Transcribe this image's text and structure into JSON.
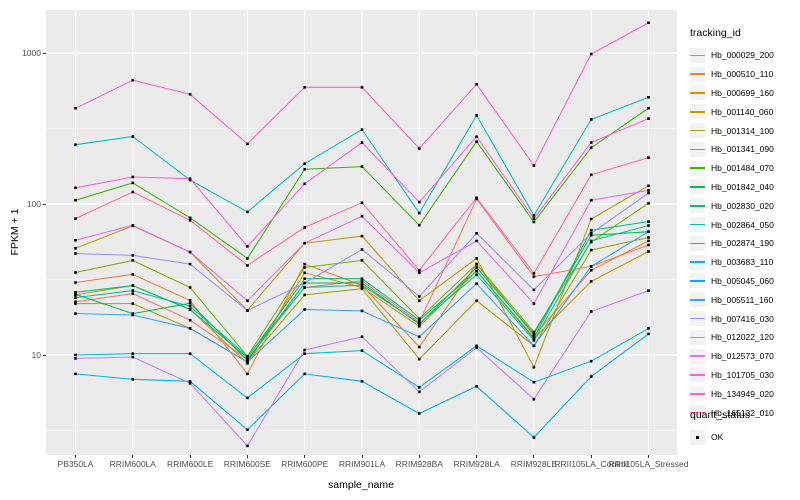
{
  "legend": {
    "tracking_title": "tracking_id",
    "quant_title": "quant_status",
    "quant_items": [
      {
        "label": "OK",
        "marker": "black-square"
      }
    ]
  },
  "colors": {
    "panel_background": "#EBEBEB",
    "gridline": "#FFFFFF",
    "tick_text": "#4D4D4D",
    "axis_title_text": "#000000",
    "point_marker": "#000000",
    "legend_key_background": "#F2F2F2"
  },
  "chart_data": {
    "type": "line",
    "title": "",
    "x_axis_label": "sample_name",
    "y_axis_label": "FPKM + 1",
    "y_scale": "log10",
    "y_ticks": [
      10,
      100,
      1000
    ],
    "y_minor_gridlines": [
      3.162,
      31.62,
      316.2
    ],
    "ylim": [
      2.2,
      1800
    ],
    "grid": true,
    "legend_position": "right",
    "marker": "filled-black-square",
    "categories": [
      "PB350LA",
      "RRIM600LA",
      "RRIM600LE",
      "RRIM600SE",
      "RRIM600PE",
      "RRIM901LA",
      "RRIM928BA",
      "RRIM928LA",
      "RRIM928LE",
      "RRII105LA_Control",
      "RRII105LA_Stressed"
    ],
    "series": [
      {
        "name": "Hb_000029_200",
        "color": "#F8766D",
        "values": [
          22.5,
          25.5,
          17,
          9.4,
          28,
          31,
          16.5,
          108,
          33,
          38.6,
          53.5
        ]
      },
      {
        "name": "Hb_000510_110",
        "color": "#EA8331",
        "values": [
          30.2,
          34.2,
          23,
          7.5,
          40,
          29,
          11.3,
          40,
          13.4,
          36.4,
          57
        ]
      },
      {
        "name": "Hb_000699_160",
        "color": "#D89000",
        "values": [
          25,
          28.8,
          20,
          8.8,
          35,
          28,
          15.5,
          36,
          12.8,
          30.7,
          48.5
        ]
      },
      {
        "name": "Hb_001140_060",
        "color": "#C09B00",
        "values": [
          50.9,
          71.6,
          48,
          19.7,
          55,
          61.3,
          22.9,
          43.6,
          8.3,
          79.5,
          132
        ]
      },
      {
        "name": "Hb_001314_100",
        "color": "#A3A500",
        "values": [
          21.9,
          21.9,
          15,
          9.0,
          25,
          27.5,
          9.4,
          22.9,
          11.5,
          49.5,
          60
        ]
      },
      {
        "name": "Hb_001341_090",
        "color": "#7CAE00",
        "values": [
          35.2,
          42.3,
          28,
          9.8,
          38,
          42.3,
          17.4,
          40,
          14.2,
          56,
          101
        ]
      },
      {
        "name": "Hb_001484_070",
        "color": "#39B600",
        "values": [
          106,
          138,
          81,
          43.6,
          170,
          177,
          72.4,
          259,
          76,
          236,
          431
        ]
      },
      {
        "name": "Hb_001842_040",
        "color": "#00BB4E",
        "values": [
          25.2,
          18.8,
          22,
          9.2,
          30,
          30,
          16,
          38,
          13.8,
          62,
          65.5
        ]
      },
      {
        "name": "Hb_002830_020",
        "color": "#00BF7D",
        "values": [
          26,
          28.8,
          20,
          9.6,
          32,
          32,
          17,
          36,
          13,
          67,
          76.5
        ]
      },
      {
        "name": "Hb_002864_050",
        "color": "#00C1A3",
        "values": [
          24,
          26.7,
          21,
          9.8,
          28,
          29,
          16.2,
          34,
          12.5,
          57,
          72
        ]
      },
      {
        "name": "Hb_002874_190",
        "color": "#00BFC4",
        "values": [
          247,
          280,
          144,
          88.6,
          185,
          311,
          87,
          386,
          84,
          363,
          509
        ]
      },
      {
        "name": "Hb_003683_110",
        "color": "#00BAE0",
        "values": [
          10,
          10.2,
          10.2,
          5.2,
          10.2,
          10.7,
          6.1,
          11.5,
          6.6,
          9.1,
          15
        ]
      },
      {
        "name": "Hb_005045_060",
        "color": "#00B0F6",
        "values": [
          7.5,
          6.9,
          6.7,
          3.2,
          7.5,
          6.7,
          4.1,
          6.2,
          2.84,
          7.2,
          13.8
        ]
      },
      {
        "name": "Hb_005511_160",
        "color": "#35A2FF",
        "values": [
          18.8,
          18.4,
          15,
          9.0,
          20,
          19.6,
          13.2,
          29.7,
          11.5,
          38.6,
          65.5
        ]
      },
      {
        "name": "Hb_007416_030",
        "color": "#9590FF",
        "values": [
          47,
          45.7,
          40,
          19.7,
          30,
          50,
          24.4,
          64,
          27,
          64,
          118
        ]
      },
      {
        "name": "Hb_012022_120",
        "color": "#C77CFF",
        "values": [
          9.5,
          9.7,
          6.5,
          2.5,
          10.8,
          13.2,
          5.7,
          11.2,
          5.1,
          19.4,
          26.7
        ]
      },
      {
        "name": "Hb_012573_070",
        "color": "#E76BF3",
        "values": [
          57.5,
          72.3,
          48,
          22.9,
          55,
          83,
          35,
          57,
          21.9,
          106,
          123
        ]
      },
      {
        "name": "Hb_101705_030",
        "color": "#FA62DB",
        "values": [
          128,
          151,
          147,
          52.4,
          136,
          255,
          103,
          279,
          80,
          255,
          368
        ]
      },
      {
        "name": "Hb_134949_020",
        "color": "#FF62BC",
        "values": [
          430,
          660,
          533,
          250,
          593,
          593,
          233,
          620,
          180,
          985,
          1585
        ]
      },
      {
        "name": "Hb_165132_010",
        "color": "#FF6A98",
        "values": [
          80,
          120,
          78,
          39.2,
          70,
          102,
          36.4,
          110,
          34.7,
          156,
          203
        ]
      }
    ]
  }
}
